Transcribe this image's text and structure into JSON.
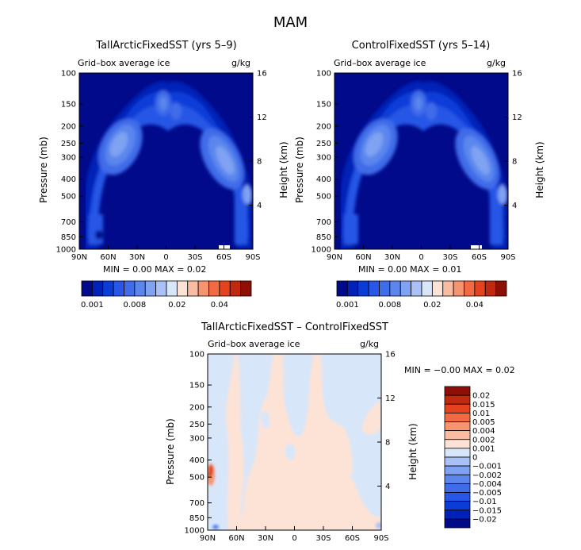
{
  "figure_title": "MAM",
  "panels": [
    {
      "title": "TallArcticFixedSST (yrs 5–9)",
      "left_string": "Grid–box average ice",
      "right_string": "g/kg",
      "ylabel": "Pressure (mb)",
      "y2label": "Height (km)",
      "minmax": "MIN =   0.00   MAX =   0.02",
      "pressure_ticks": [
        "100",
        "150",
        "200",
        "250",
        "300",
        "400",
        "500",
        "700",
        "850",
        "1000"
      ],
      "height_ticks": [
        "16",
        "12",
        "8",
        "4"
      ],
      "lat_ticks": [
        "90N",
        "60N",
        "30N",
        "0",
        "30S",
        "60S",
        "90S"
      ],
      "colorbar_labels": [
        "0.001",
        "0.008",
        "0.02",
        "0.04"
      ]
    },
    {
      "title": "ControlFixedSST (yrs 5–14)",
      "left_string": "Grid–box average ice",
      "right_string": "g/kg",
      "ylabel": "Pressure (mb)",
      "y2label": "Height (km)",
      "minmax": "MIN =   0.00   MAX =   0.01",
      "pressure_ticks": [
        "100",
        "150",
        "200",
        "250",
        "300",
        "400",
        "500",
        "700",
        "850",
        "1000"
      ],
      "height_ticks": [
        "16",
        "12",
        "8",
        "4"
      ],
      "lat_ticks": [
        "90N",
        "60N",
        "30N",
        "0",
        "30S",
        "60S",
        "90S"
      ],
      "colorbar_labels": [
        "0.001",
        "0.008",
        "0.02",
        "0.04"
      ]
    },
    {
      "title": "TallArcticFixedSST – ControlFixedSST",
      "left_string": "Grid–box average ice",
      "right_string": "g/kg",
      "ylabel": "Pressure (mb)",
      "y2label": "Height (km)",
      "minmax": "MIN =   −0.00   MAX =    0.02",
      "pressure_ticks": [
        "100",
        "150",
        "200",
        "250",
        "300",
        "400",
        "500",
        "700",
        "850",
        "1000"
      ],
      "height_ticks": [
        "16",
        "12",
        "8",
        "4"
      ],
      "lat_ticks": [
        "90N",
        "60N",
        "30N",
        "0",
        "30S",
        "60S",
        "90S"
      ],
      "colorbar_labels": [
        "0.02",
        "0.015",
        "0.01",
        "0.005",
        "0.004",
        "0.002",
        "0.001",
        "0",
        "−0.001",
        "−0.002",
        "−0.004",
        "−0.005",
        "−0.01",
        "−0.015",
        "−0.02"
      ]
    }
  ],
  "colors": {
    "abs_scale": [
      "#000a8a",
      "#0022b8",
      "#0a3dd8",
      "#2856e6",
      "#3f6ce9",
      "#5a86ee",
      "#7fa2f2",
      "#a9c1f6",
      "#d8e6fa",
      "#fde3d6",
      "#f9bba1",
      "#f6946f",
      "#f26a44",
      "#e5421f",
      "#c0280f",
      "#8e0f05"
    ],
    "diff_scale": [
      "#8e0f05",
      "#c0280f",
      "#e5421f",
      "#f26a44",
      "#f6946f",
      "#f9bba1",
      "#fde3d6",
      "#d8e6fa",
      "#a9c1f6",
      "#7fa2f2",
      "#5a86ee",
      "#3f6ce9",
      "#2856e6",
      "#0a3dd8",
      "#0022b8",
      "#000a8a"
    ]
  },
  "chart_data": [
    {
      "type": "heatmap",
      "title": "TallArcticFixedSST (yrs 5–9)",
      "xlabel": "",
      "ylabel": "Pressure (mb)",
      "x_ticks": [
        "90N",
        "60N",
        "30N",
        "0",
        "30S",
        "60S",
        "90S"
      ],
      "ylim_mb": [
        1000,
        100
      ],
      "levels": [
        0.001,
        0.002,
        0.004,
        0.006,
        0.008,
        0.01,
        0.012,
        0.015,
        0.02,
        0.025,
        0.03,
        0.035,
        0.04,
        0.045,
        0.05
      ],
      "min": 0.0,
      "max": 0.02,
      "features": [
        {
          "lat": 40,
          "p_mb": 450,
          "value": 0.01
        },
        {
          "lat": -40,
          "p_mb": 500,
          "value": 0.01
        },
        {
          "lat": 0,
          "p_mb": 250,
          "value": 0.006
        }
      ]
    },
    {
      "type": "heatmap",
      "title": "ControlFixedSST (yrs 5–14)",
      "xlabel": "",
      "ylabel": "Pressure (mb)",
      "x_ticks": [
        "90N",
        "60N",
        "30N",
        "0",
        "30S",
        "60S",
        "90S"
      ],
      "ylim_mb": [
        1000,
        100
      ],
      "levels": [
        0.001,
        0.002,
        0.004,
        0.006,
        0.008,
        0.01,
        0.012,
        0.015,
        0.02,
        0.025,
        0.03,
        0.035,
        0.04,
        0.045,
        0.05
      ],
      "min": 0.0,
      "max": 0.01,
      "features": [
        {
          "lat": 40,
          "p_mb": 450,
          "value": 0.01
        },
        {
          "lat": -40,
          "p_mb": 500,
          "value": 0.01
        },
        {
          "lat": 0,
          "p_mb": 250,
          "value": 0.006
        }
      ]
    },
    {
      "type": "heatmap",
      "title": "TallArcticFixedSST – ControlFixedSST",
      "xlabel": "",
      "ylabel": "Pressure (mb)",
      "x_ticks": [
        "90N",
        "60N",
        "30N",
        "0",
        "30S",
        "60S",
        "90S"
      ],
      "ylim_mb": [
        1000,
        100
      ],
      "levels": [
        -0.02,
        -0.015,
        -0.01,
        -0.005,
        -0.004,
        -0.002,
        -0.001,
        0,
        0.001,
        0.002,
        0.004,
        0.005,
        0.01,
        0.015,
        0.02
      ],
      "min": -0.0,
      "max": 0.02
    }
  ]
}
